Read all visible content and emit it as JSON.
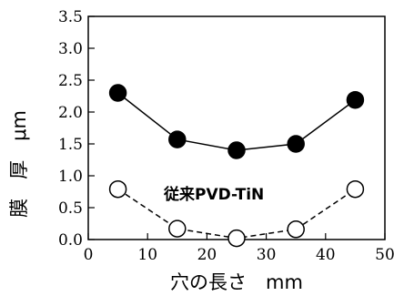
{
  "chart_data": {
    "type": "line",
    "xlabel": "穴の長さ　mm",
    "ylabel": "膜　厚　μm",
    "xlim": [
      0,
      50
    ],
    "ylim": [
      0,
      3.5
    ],
    "xticks": [
      "0",
      "10",
      "20",
      "30",
      "40",
      "50"
    ],
    "yticks": [
      "0.0",
      "0.5",
      "1.0",
      "1.5",
      "2.0",
      "2.5",
      "3.0",
      "3.5"
    ],
    "grid": false,
    "legend": "none",
    "annotation": "従来PVD-TiN",
    "series": [
      {
        "marker": "filled-circle",
        "line_style": "solid",
        "x": [
          5,
          15,
          25,
          35,
          45
        ],
        "y": [
          2.3,
          1.57,
          1.4,
          1.5,
          2.19
        ]
      },
      {
        "name": "従来PVD-TiN",
        "marker": "open-circle",
        "line_style": "dashed",
        "x": [
          5,
          15,
          25,
          35,
          45
        ],
        "y": [
          0.79,
          0.17,
          0.02,
          0.16,
          0.79
        ]
      }
    ]
  }
}
